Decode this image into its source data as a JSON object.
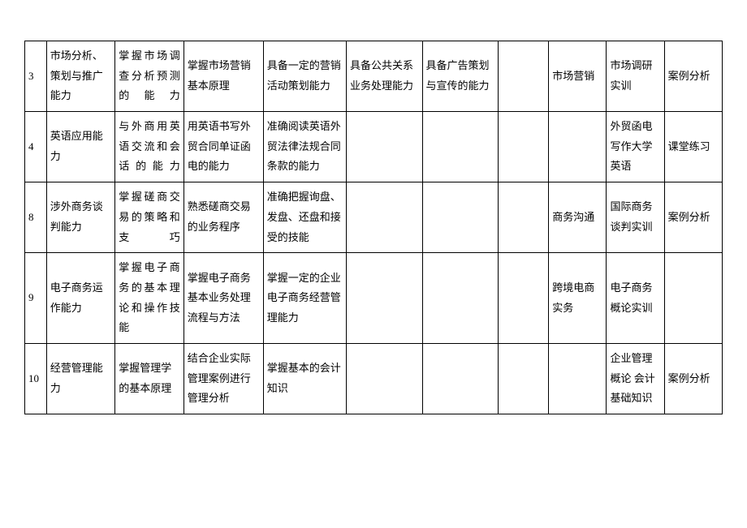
{
  "table": {
    "rows": [
      {
        "c0": "3",
        "c1": "市场分析、策划与推广能力",
        "c2": "掌握市场调查分析预测的能力",
        "c3": "掌握市场营销基本原理",
        "c4": "具备一定的营销活动策划能力",
        "c5": "具备公共关系业务处理能力",
        "c6": "具备广告策划与宣传的能力",
        "c7": "",
        "c8": "市场营销",
        "c9": "市场调研实训",
        "c10": "案例分析"
      },
      {
        "c0": "4",
        "c1": "英语应用能力",
        "c2": "与外商用英语交流和会话的能力",
        "c3": "用英语书写外贸合同单证函电的能力",
        "c4": "准确阅读英语外贸法律法规合同条款的能力",
        "c5": "",
        "c6": "",
        "c7": "",
        "c8": "",
        "c9": "外贸函电写作大学英语",
        "c10": "课堂练习"
      },
      {
        "c0": "8",
        "c1": "涉外商务谈判能力",
        "c2": "掌握磋商交易的策略和支巧",
        "c3": "熟悉磋商交易的业务程序",
        "c4": "准确把握询盘、发盘、还盘和接受的技能",
        "c5": "",
        "c6": "",
        "c7": "",
        "c8": "商务沟通",
        "c9": "国际商务谈判实训",
        "c10": "案例分析"
      },
      {
        "c0": "9",
        "c1": "电子商务运作能力",
        "c2": "掌握电子商务的基本理论和操作技能",
        "c3": "掌握电子商务基本业务处理流程与方法",
        "c4": "掌握一定的企业电子商务经营管理能力",
        "c5": "",
        "c6": "",
        "c7": "",
        "c8": "跨境电商实务",
        "c9": "电子商务概论实训",
        "c10": ""
      },
      {
        "c0": "10",
        "c1": "经营管理能力",
        "c2": "掌握管理学的基本原理",
        "c3": "结合企业实际管理案例进行管理分析",
        "c4": "掌握基本的会计知识",
        "c5": "",
        "c6": "",
        "c7": "",
        "c8": "",
        "c9": "企业管理概论\n会计基础知识",
        "c10": "案例分析"
      }
    ]
  }
}
